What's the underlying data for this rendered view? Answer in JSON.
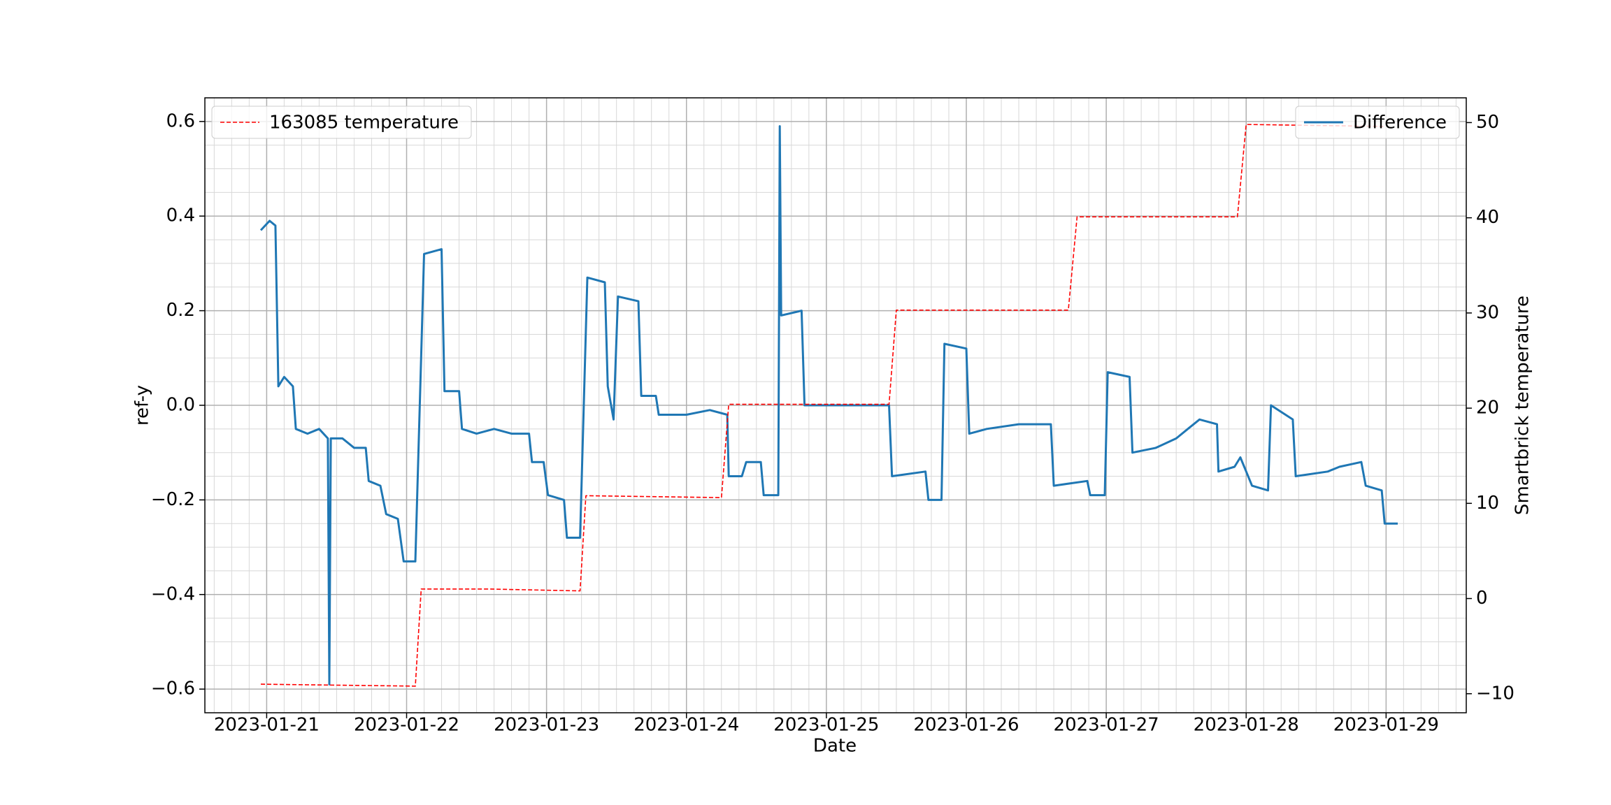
{
  "chart_data": {
    "type": "line",
    "x_label": "Date",
    "y_label": "ref-y",
    "y2_label": "Smartbrick temperature",
    "grid": "major and minor",
    "xlim": [
      "2023-01-20T13:24",
      "2023-01-29T13:45"
    ],
    "xticks": [
      "2023-01-21",
      "2023-01-22",
      "2023-01-23",
      "2023-01-24",
      "2023-01-25",
      "2023-01-26",
      "2023-01-27",
      "2023-01-28",
      "2023-01-29"
    ],
    "ylim": [
      -0.65,
      0.65
    ],
    "yticks": [
      {
        "value": -0.6,
        "label": "−0.6"
      },
      {
        "value": -0.4,
        "label": "−0.4"
      },
      {
        "value": -0.2,
        "label": "−0.2"
      },
      {
        "value": 0,
        "label": "0.0"
      },
      0.2,
      0.4,
      0.6
    ],
    "y2lim": [
      -12,
      52.6
    ],
    "y2ticks": [
      {
        "value": -10,
        "label": "−10"
      },
      0,
      10,
      20,
      30,
      40,
      50
    ],
    "series": [
      {
        "name": "Difference",
        "color": "#1f77b4",
        "dashed": false,
        "legend": "upper right",
        "x": [
          "2023-01-20T23:00",
          "2023-01-21T00:30",
          "2023-01-21T01:30",
          "2023-01-21T02:00",
          "2023-01-21T03:00",
          "2023-01-21T04:30",
          "2023-01-21T05:00",
          "2023-01-21T07:00",
          "2023-01-21T09:00",
          "2023-01-21T10:30",
          "2023-01-21T10:45",
          "2023-01-21T11:00",
          "2023-01-21T13:00",
          "2023-01-21T15:00",
          "2023-01-21T17:00",
          "2023-01-21T17:30",
          "2023-01-21T19:30",
          "2023-01-21T20:30",
          "2023-01-21T22:30",
          "2023-01-21T23:30",
          "2023-01-22T01:30",
          "2023-01-22T03:00",
          "2023-01-22T06:00",
          "2023-01-22T06:30",
          "2023-01-22T09:00",
          "2023-01-22T09:30",
          "2023-01-22T12:00",
          "2023-01-22T15:00",
          "2023-01-22T18:00",
          "2023-01-22T21:00",
          "2023-01-22T21:30",
          "2023-01-22T23:30",
          "2023-01-23T00:15",
          "2023-01-23T03:00",
          "2023-01-23T03:30",
          "2023-01-23T05:45",
          "2023-01-23T07:00",
          "2023-01-23T10:00",
          "2023-01-23T10:30",
          "2023-01-23T11:30",
          "2023-01-23T12:15",
          "2023-01-23T15:45",
          "2023-01-23T16:15",
          "2023-01-23T18:45",
          "2023-01-23T19:15",
          "2023-01-24T00:00",
          "2023-01-24T04:00",
          "2023-01-24T07:00",
          "2023-01-24T07:15",
          "2023-01-24T09:30",
          "2023-01-24T10:15",
          "2023-01-24T12:45",
          "2023-01-24T13:15",
          "2023-01-24T15:45",
          "2023-01-24T16:00",
          "2023-01-24T16:15",
          "2023-01-24T19:45",
          "2023-01-24T20:15",
          "2023-01-25T04:00",
          "2023-01-25T10:45",
          "2023-01-25T11:15",
          "2023-01-25T17:00",
          "2023-01-25T17:30",
          "2023-01-25T19:45",
          "2023-01-25T20:15",
          "2023-01-26T00:00",
          "2023-01-26T00:30",
          "2023-01-26T03:30",
          "2023-01-26T09:00",
          "2023-01-26T14:30",
          "2023-01-26T15:00",
          "2023-01-26T20:45",
          "2023-01-26T21:15",
          "2023-01-26T23:45",
          "2023-01-27T00:15",
          "2023-01-27T04:00",
          "2023-01-27T04:30",
          "2023-01-27T08:30",
          "2023-01-27T12:00",
          "2023-01-27T14:00",
          "2023-01-27T16:00",
          "2023-01-27T19:00",
          "2023-01-27T19:15",
          "2023-01-27T22:00",
          "2023-01-27T23:00",
          "2023-01-28T01:00",
          "2023-01-28T03:45",
          "2023-01-28T04:15",
          "2023-01-28T08:00",
          "2023-01-28T08:30",
          "2023-01-28T14:00",
          "2023-01-28T16:00",
          "2023-01-28T19:45",
          "2023-01-28T20:30",
          "2023-01-28T23:15",
          "2023-01-28T23:45",
          "2023-01-29T02:00"
        ],
        "values": [
          0.37,
          0.39,
          0.38,
          0.04,
          0.06,
          0.04,
          -0.05,
          -0.06,
          -0.05,
          -0.07,
          -0.59,
          -0.07,
          -0.07,
          -0.09,
          -0.09,
          -0.16,
          -0.17,
          -0.23,
          -0.24,
          -0.33,
          -0.33,
          0.32,
          0.33,
          0.03,
          0.03,
          -0.05,
          -0.06,
          -0.05,
          -0.06,
          -0.06,
          -0.12,
          -0.12,
          -0.19,
          -0.2,
          -0.28,
          -0.28,
          0.27,
          0.26,
          0.04,
          -0.03,
          0.23,
          0.22,
          0.02,
          0.02,
          -0.02,
          -0.02,
          -0.01,
          -0.02,
          -0.15,
          -0.15,
          -0.12,
          -0.12,
          -0.19,
          -0.19,
          0.59,
          0.19,
          0.2,
          0,
          0,
          0,
          -0.15,
          -0.14,
          -0.2,
          -0.2,
          0.13,
          0.12,
          -0.06,
          -0.05,
          -0.04,
          -0.04,
          -0.17,
          -0.16,
          -0.19,
          -0.19,
          0.07,
          0.06,
          -0.1,
          -0.09,
          -0.07,
          -0.05,
          -0.03,
          -0.04,
          -0.14,
          -0.13,
          -0.11,
          -0.17,
          -0.18,
          0,
          -0.03,
          -0.15,
          -0.14,
          -0.13,
          -0.12,
          -0.17,
          -0.18,
          -0.25,
          -0.25
        ]
      },
      {
        "name": "163085 temperature",
        "color": "red",
        "dashed": true,
        "legend": "upper left",
        "axis": "y2",
        "x": [
          "2023-01-20T23:00",
          "2023-01-21T12:00",
          "2023-01-22T01:30",
          "2023-01-22T02:30",
          "2023-01-22T14:00",
          "2023-01-23T05:45",
          "2023-01-23T06:45",
          "2023-01-24T06:00",
          "2023-01-24T07:15",
          "2023-01-25T10:45",
          "2023-01-25T12:00",
          "2023-01-26T17:30",
          "2023-01-26T19:00",
          "2023-01-27T22:30",
          "2023-01-28T00:00",
          "2023-01-28T23:30"
        ],
        "values": [
          -9.0,
          -9.1,
          -9.2,
          1.0,
          1.0,
          0.8,
          10.8,
          10.6,
          20.4,
          20.4,
          30.3,
          30.3,
          40.1,
          40.1,
          49.8,
          49.6
        ]
      }
    ]
  }
}
